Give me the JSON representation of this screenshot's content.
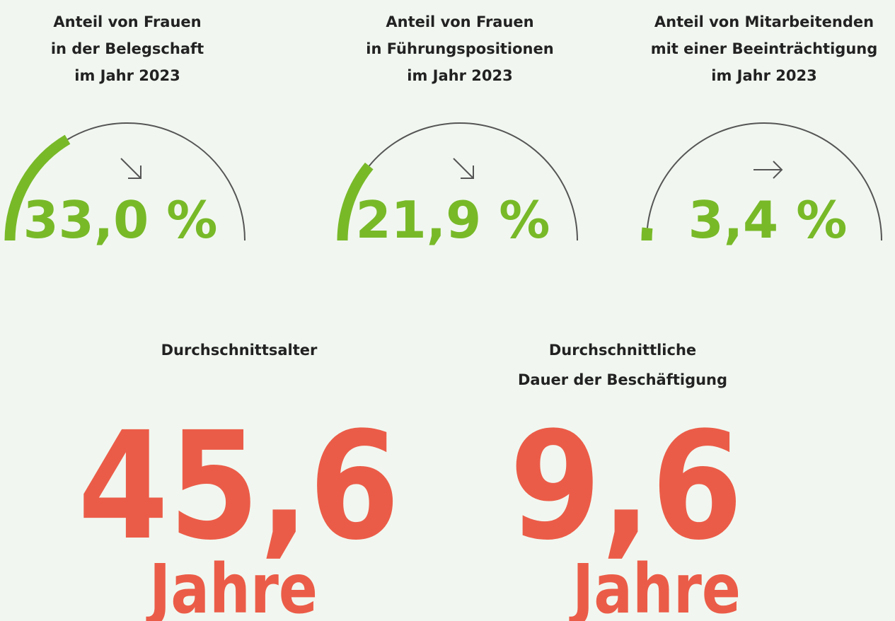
{
  "gauges": [
    {
      "title": [
        "Anteil von Frauen",
        "in der Belegschaft",
        "im Jahr 2023"
      ],
      "value": 33.0,
      "value_label": "33,0 %",
      "lim": [
        0,
        100
      ],
      "trend": "down"
    },
    {
      "title": [
        "Anteil von Frauen",
        "in Führungspositionen",
        "im Jahr 2023"
      ],
      "value": 21.9,
      "value_label": "21,9 %",
      "lim": [
        0,
        100
      ],
      "trend": "down"
    },
    {
      "title": [
        "Anteil von Mitarbeitenden",
        "mit einer Beeinträchtigung",
        "im Jahr 2023"
      ],
      "value": 3.4,
      "value_label": "3,4 %",
      "lim": [
        0,
        100
      ],
      "trend": "flat"
    }
  ],
  "stats": [
    {
      "title": [
        "Durchschnittsalter"
      ],
      "value": "45,6",
      "unit": "Jahre"
    },
    {
      "title": [
        "Durchschnittliche",
        "Dauer der Beschäftigung"
      ],
      "value": "9,6",
      "unit": "Jahre"
    }
  ]
}
